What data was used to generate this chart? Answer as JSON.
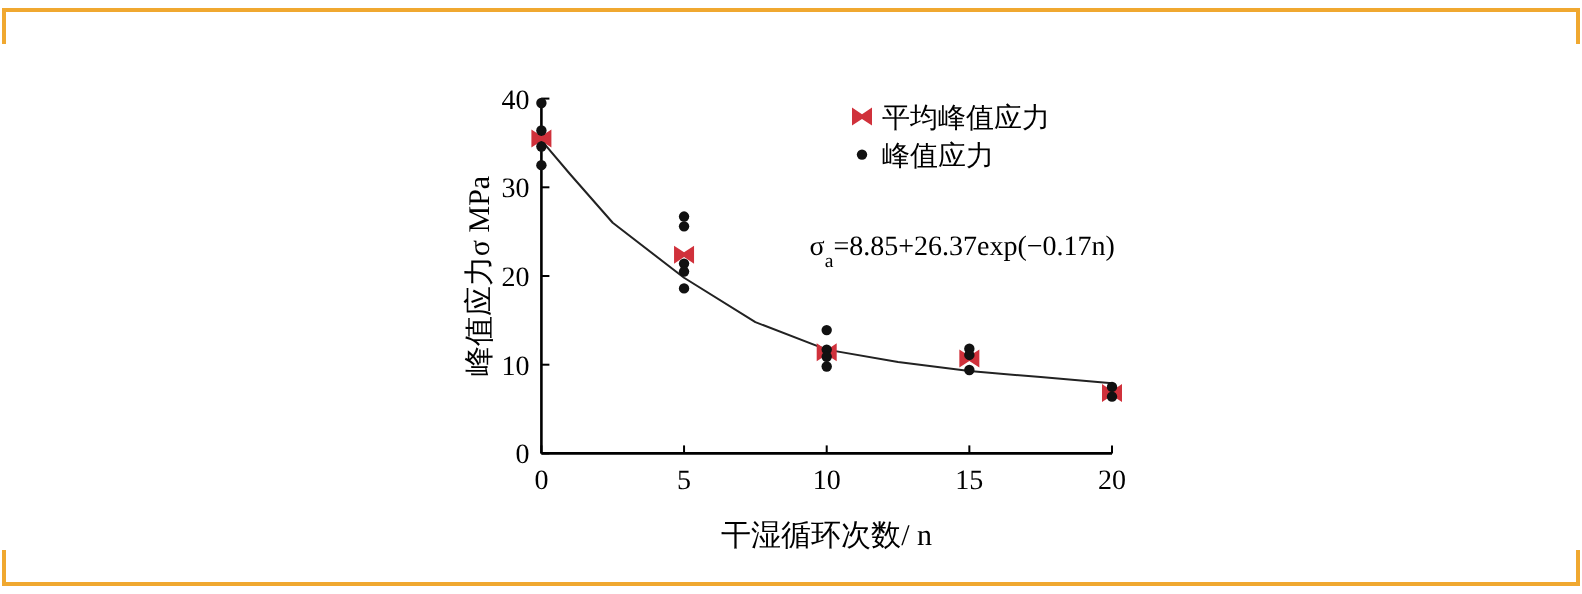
{
  "chart_data": {
    "type": "scatter",
    "xlabel": "干湿循环次数/ n",
    "ylabel": "峰值应力σ MPa",
    "xlim": [
      0,
      20
    ],
    "xticks": [
      0,
      5,
      10,
      15,
      20
    ],
    "ylim": [
      0,
      40
    ],
    "yticks": [
      0,
      10,
      20,
      30,
      40
    ],
    "grid": false,
    "legend": "top right",
    "annotations": [
      "σ$_{a}$=8.85+26.37exp(−0.17n)"
    ],
    "series": [
      {
        "name": "平均峰值应力",
        "color": "#d0313b",
        "x": [
          0,
          5,
          10,
          15,
          20
        ],
        "values": [
          35.5,
          22.4,
          11.4,
          10.7,
          6.8
        ]
      },
      {
        "name": "峰值应力",
        "color": "#111111",
        "marker": "circle",
        "x": [
          0,
          0,
          0,
          0,
          5,
          5,
          5,
          5,
          5,
          10,
          10,
          10,
          10,
          15,
          15,
          15,
          20,
          20
        ],
        "values": [
          39.5,
          36.4,
          34.6,
          32.5,
          26.7,
          25.6,
          21.4,
          20.5,
          18.6,
          13.9,
          11.7,
          10.9,
          9.8,
          11.8,
          11.1,
          9.4,
          7.5,
          6.4
        ]
      },
      {
        "type": "line",
        "color": "#222222",
        "marker": "none",
        "x": [
          0,
          1,
          2.5,
          5,
          7.5,
          10,
          12.5,
          15,
          17.5,
          20
        ],
        "values": [
          35.3,
          31.5,
          26,
          19.8,
          14.8,
          11.7,
          10.3,
          9.3,
          8.6,
          7.9
        ]
      }
    ]
  }
}
